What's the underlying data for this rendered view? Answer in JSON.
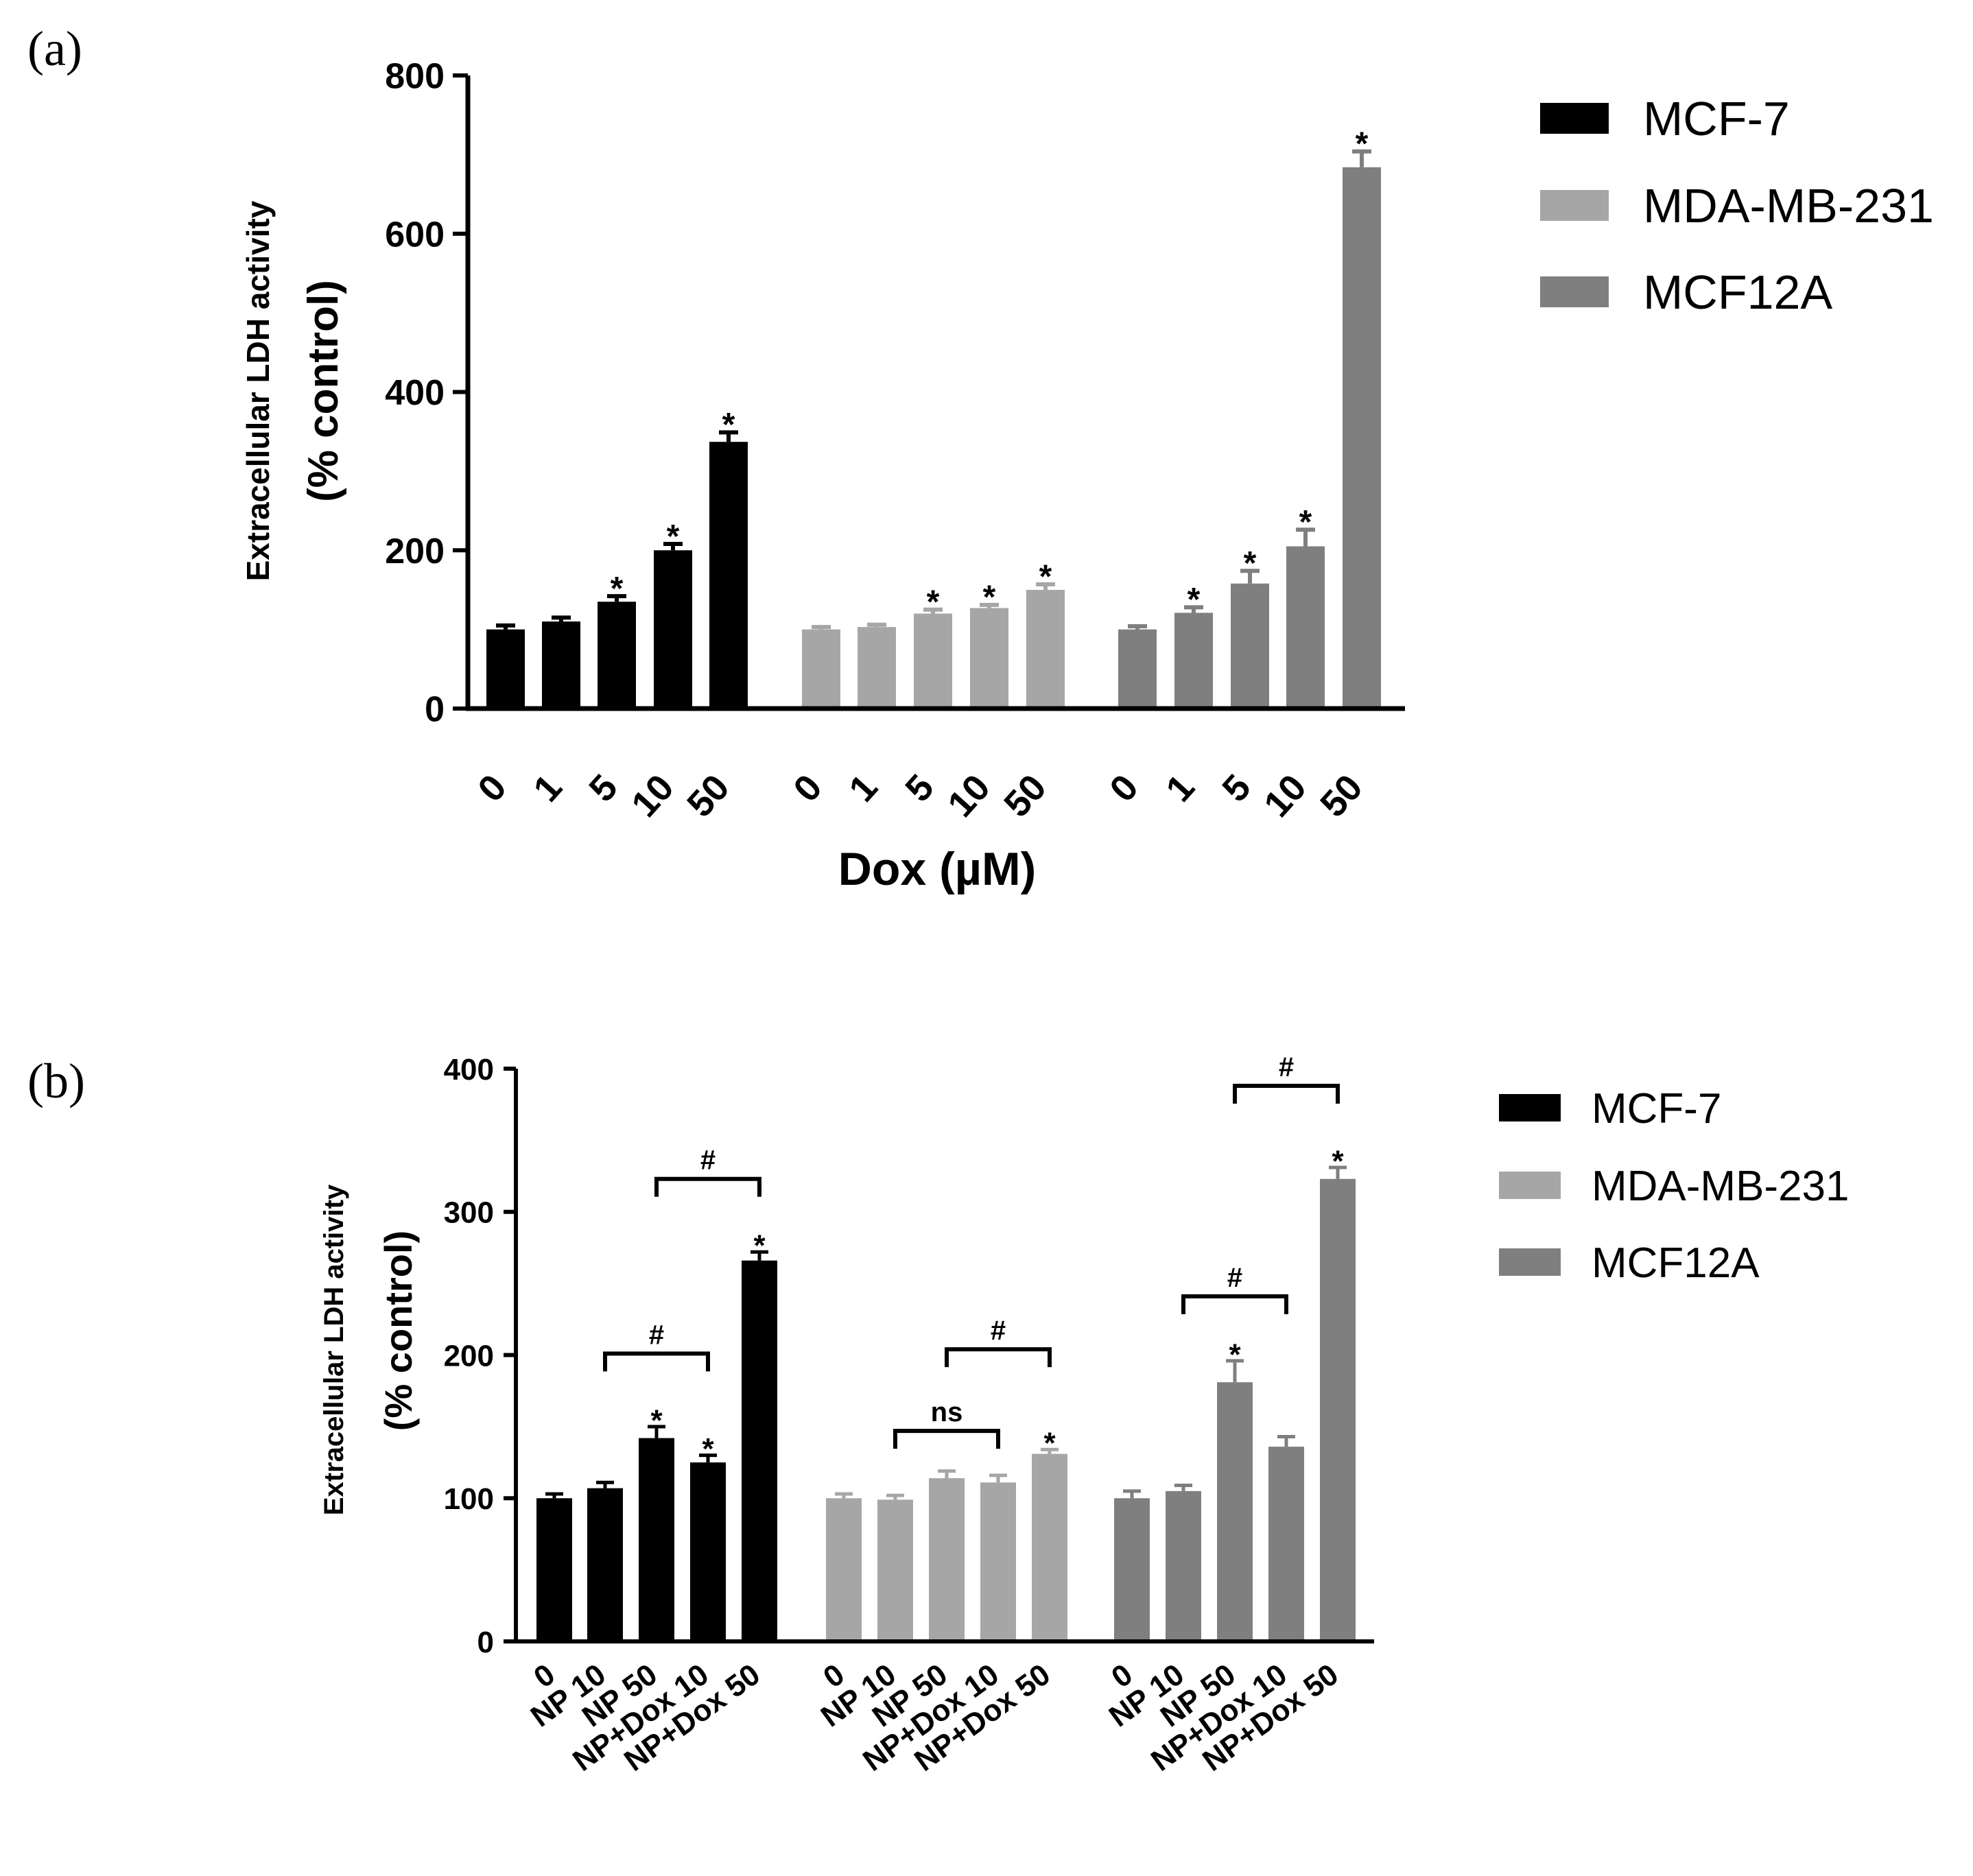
{
  "colors": {
    "MCF-7": "#000000",
    "MDA-MB-231": "#a6a6a7",
    "MCF12A": "#7f7f80",
    "axis": "#000000"
  },
  "chart_data": [
    {
      "panel_label": "(a)",
      "type": "bar",
      "title": "",
      "xlabel": "Dox (µM)",
      "ylabel_line1": "Extracellular LDH activity",
      "ylabel_line2": "(% control)",
      "ylim": [
        0,
        800
      ],
      "yticks": [
        0,
        200,
        400,
        600,
        800
      ],
      "ytick_labels": [
        "0",
        "200",
        "400",
        "600",
        "800"
      ],
      "legend_position": "top-right",
      "groups": [
        {
          "name": "MCF-7",
          "categories": [
            "0",
            "1",
            "5",
            "10",
            "50"
          ],
          "values": [
            100,
            110,
            135,
            200,
            337
          ],
          "errors": [
            5,
            5,
            7,
            8,
            12
          ],
          "sig": [
            "",
            "",
            "*",
            "*",
            "*"
          ]
        },
        {
          "name": "MDA-MB-231",
          "categories": [
            "0",
            "1",
            "5",
            "10",
            "50"
          ],
          "values": [
            100,
            103,
            120,
            127,
            150
          ],
          "errors": [
            3,
            3,
            5,
            4,
            7
          ],
          "sig": [
            "",
            "",
            "*",
            "*",
            "*"
          ]
        },
        {
          "name": "MCF12A",
          "categories": [
            "0",
            "1",
            "5",
            "10",
            "50"
          ],
          "values": [
            100,
            121,
            158,
            205,
            684
          ],
          "errors": [
            4,
            7,
            16,
            21,
            20
          ],
          "sig": [
            "",
            "*",
            "*",
            "*",
            "*"
          ]
        }
      ],
      "brackets": []
    },
    {
      "panel_label": "(b)",
      "type": "bar",
      "title": "",
      "xlabel": "",
      "ylabel_line1": "Extracellular LDH activity",
      "ylabel_line2": "(% control)",
      "ylim": [
        0,
        400
      ],
      "yticks": [
        0,
        100,
        200,
        300,
        400
      ],
      "ytick_labels": [
        "0",
        "100",
        "200",
        "300",
        "400"
      ],
      "legend_position": "top-right",
      "groups": [
        {
          "name": "MCF-7",
          "categories": [
            "0",
            "NP 10",
            "NP 50",
            "NP+Dox 10",
            "NP+Dox 50"
          ],
          "values": [
            100,
            107,
            142,
            125,
            266
          ],
          "errors": [
            3,
            4,
            8,
            5,
            6
          ],
          "sig": [
            "",
            "",
            "*",
            "*",
            "*"
          ]
        },
        {
          "name": "MDA-MB-231",
          "categories": [
            "0",
            "NP 10",
            "NP 50",
            "NP+Dox 10",
            "NP+Dox 50"
          ],
          "values": [
            100,
            99,
            114,
            111,
            131
          ],
          "errors": [
            3,
            3,
            5,
            5,
            3
          ],
          "sig": [
            "",
            "",
            "",
            "",
            "*"
          ]
        },
        {
          "name": "MCF12A",
          "categories": [
            "0",
            "NP 10",
            "NP 50",
            "NP+Dox 10",
            "NP+Dox 50"
          ],
          "values": [
            100,
            105,
            181,
            136,
            323
          ],
          "errors": [
            5,
            4,
            15,
            7,
            8
          ],
          "sig": [
            "",
            "",
            "*",
            "",
            "*"
          ]
        }
      ],
      "brackets": [
        {
          "group": 0,
          "from": 1,
          "to": 3,
          "level": 201,
          "label": "#"
        },
        {
          "group": 0,
          "from": 2,
          "to": 4,
          "level": 323,
          "label": "#"
        },
        {
          "group": 1,
          "from": 1,
          "to": 3,
          "level": 147,
          "label": "ns"
        },
        {
          "group": 1,
          "from": 2,
          "to": 4,
          "level": 204,
          "label": "#"
        },
        {
          "group": 2,
          "from": 1,
          "to": 3,
          "level": 241,
          "label": "#"
        },
        {
          "group": 2,
          "from": 2,
          "to": 4,
          "level": 388,
          "label": "#"
        }
      ]
    }
  ]
}
